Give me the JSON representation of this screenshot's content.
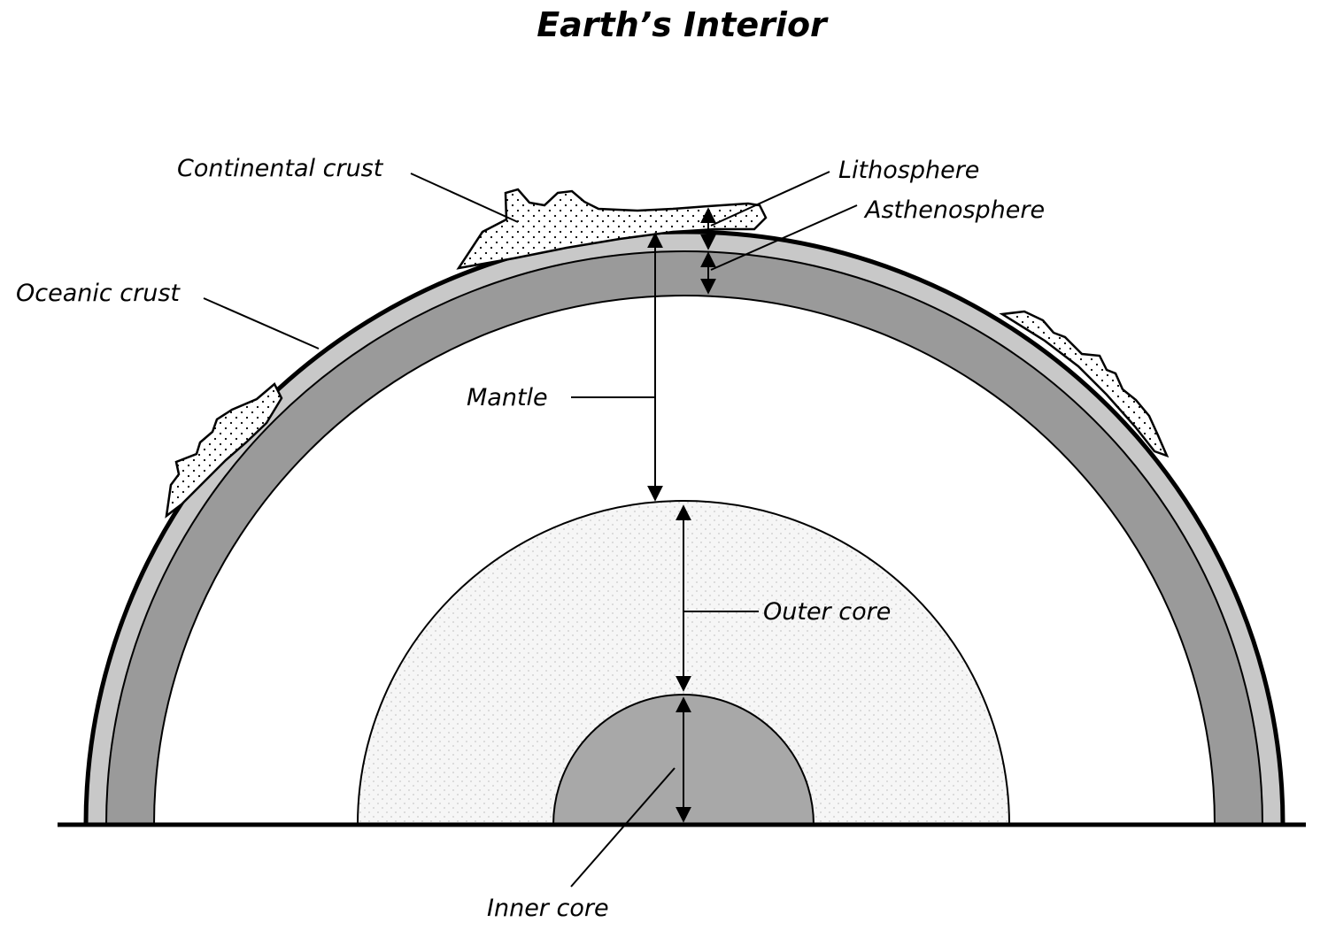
{
  "title": "Earth’s Interior",
  "labels": {
    "continental_crust": "Continental crust",
    "oceanic_crust": "Oceanic crust",
    "lithosphere": "Lithosphere",
    "asthenosphere": "Asthenosphere",
    "mantle": "Mantle",
    "outer_core": "Outer core",
    "inner_core": "Inner core"
  },
  "colors": {
    "ink": "#000000",
    "outer_shell_fill": "#c8c8c8",
    "asthenosphere_fill": "#9a9a9a",
    "mantle_fill": "#ffffff",
    "outer_core_fill": "#f3f3f3",
    "inner_core_fill": "#a8a8a8"
  }
}
